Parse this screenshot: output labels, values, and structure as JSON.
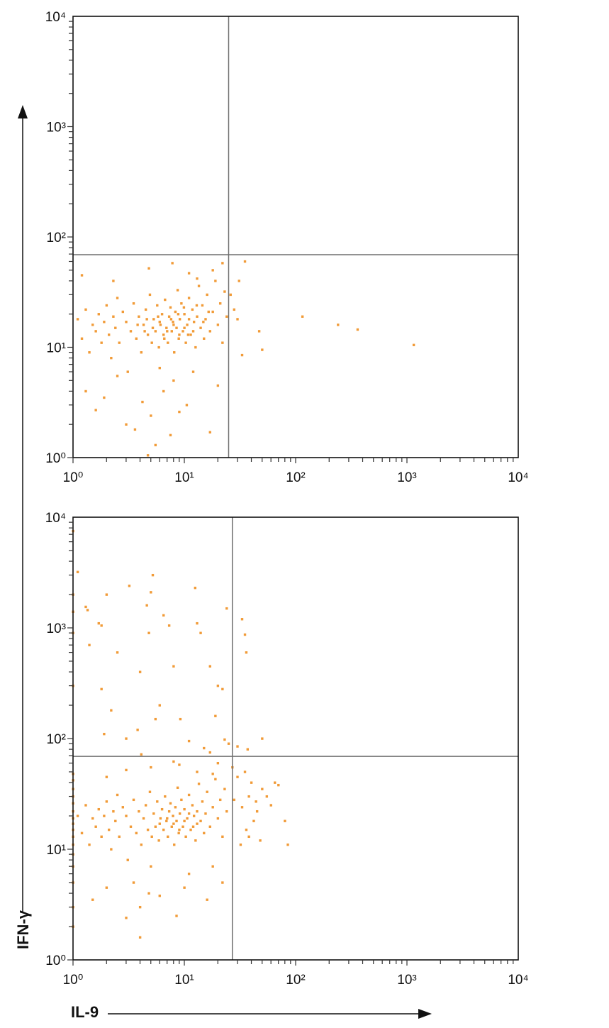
{
  "chart_data": [
    {
      "type": "scatter",
      "title": "",
      "xlabel": "IL-9",
      "ylabel": "IFN-γ",
      "xscale": "log",
      "yscale": "log",
      "xlim": [
        1,
        10000
      ],
      "ylim": [
        1,
        10000
      ],
      "tick_labels": [
        "10⁰",
        "10¹",
        "10²",
        "10³",
        "10⁴"
      ],
      "tick_values": [
        1,
        10,
        100,
        1000,
        10000
      ],
      "quadrant_gate": {
        "x": 25,
        "y": 69
      },
      "point_color": "#F19B38",
      "points": [
        [
          1.1,
          18
        ],
        [
          1.2,
          12
        ],
        [
          1.3,
          22
        ],
        [
          1.4,
          9
        ],
        [
          1.5,
          16
        ],
        [
          1.6,
          14
        ],
        [
          1.7,
          20
        ],
        [
          1.8,
          11
        ],
        [
          1.9,
          17
        ],
        [
          2.0,
          24
        ],
        [
          2.1,
          13
        ],
        [
          2.2,
          8
        ],
        [
          2.3,
          19
        ],
        [
          2.4,
          15
        ],
        [
          2.5,
          28
        ],
        [
          2.6,
          11
        ],
        [
          2.8,
          21
        ],
        [
          3.0,
          17
        ],
        [
          3.1,
          6
        ],
        [
          3.3,
          14
        ],
        [
          3.5,
          25
        ],
        [
          3.7,
          12
        ],
        [
          3.9,
          19
        ],
        [
          4.1,
          9
        ],
        [
          4.3,
          16
        ],
        [
          4.5,
          22
        ],
        [
          4.7,
          13
        ],
        [
          4.9,
          30
        ],
        [
          5.1,
          11
        ],
        [
          5.3,
          18
        ],
        [
          5.5,
          14
        ],
        [
          5.7,
          24
        ],
        [
          5.9,
          10
        ],
        [
          6.1,
          16
        ],
        [
          6.3,
          20
        ],
        [
          6.5,
          13
        ],
        [
          6.7,
          27
        ],
        [
          6.9,
          15
        ],
        [
          7.1,
          11
        ],
        [
          7.3,
          19
        ],
        [
          7.5,
          23
        ],
        [
          7.7,
          14
        ],
        [
          7.9,
          17
        ],
        [
          8.1,
          9
        ],
        [
          8.3,
          21
        ],
        [
          8.5,
          15
        ],
        [
          8.7,
          33
        ],
        [
          8.9,
          12
        ],
        [
          9.1,
          18
        ],
        [
          9.4,
          25
        ],
        [
          9.7,
          14
        ],
        [
          10,
          20
        ],
        [
          10.3,
          11
        ],
        [
          10.6,
          16
        ],
        [
          11,
          28
        ],
        [
          11.4,
          13
        ],
        [
          11.8,
          22
        ],
        [
          12.2,
          17
        ],
        [
          12.6,
          10
        ],
        [
          13,
          19
        ],
        [
          13.5,
          36
        ],
        [
          14,
          15
        ],
        [
          14.5,
          24
        ],
        [
          15,
          12
        ],
        [
          15.5,
          18
        ],
        [
          16,
          30
        ],
        [
          17,
          14
        ],
        [
          18,
          21
        ],
        [
          19,
          40
        ],
        [
          20,
          16
        ],
        [
          21,
          25
        ],
        [
          22,
          11
        ],
        [
          23,
          32
        ],
        [
          24,
          19
        ],
        [
          5.2,
          15
        ],
        [
          6,
          17
        ],
        [
          7,
          14
        ],
        [
          8,
          16
        ],
        [
          9,
          13
        ],
        [
          10,
          15
        ],
        [
          11,
          18
        ],
        [
          12,
          14
        ],
        [
          6.6,
          12
        ],
        [
          7.6,
          18
        ],
        [
          8.8,
          20
        ],
        [
          10.8,
          13
        ],
        [
          5.8,
          19
        ],
        [
          4.4,
          14
        ],
        [
          9.9,
          23
        ],
        [
          12.9,
          24
        ],
        [
          14.8,
          17
        ],
        [
          16.5,
          21
        ],
        [
          3.8,
          16
        ],
        [
          4.6,
          18
        ],
        [
          1.3,
          4
        ],
        [
          1.6,
          2.7
        ],
        [
          1.9,
          3.5
        ],
        [
          2.5,
          5.5
        ],
        [
          3,
          2
        ],
        [
          3.6,
          1.8
        ],
        [
          4.2,
          3.2
        ],
        [
          5,
          2.4
        ],
        [
          5.5,
          1.3
        ],
        [
          6.5,
          4
        ],
        [
          7.5,
          1.6
        ],
        [
          9,
          2.6
        ],
        [
          10.5,
          3
        ],
        [
          12,
          6
        ],
        [
          17,
          1.7
        ],
        [
          20,
          4.5
        ],
        [
          8,
          5
        ],
        [
          6,
          6.5
        ],
        [
          4.7,
          1.05
        ],
        [
          1.2,
          45
        ],
        [
          2.3,
          40
        ],
        [
          4.8,
          52
        ],
        [
          7.8,
          58
        ],
        [
          11,
          47
        ],
        [
          13,
          42
        ],
        [
          18,
          50
        ],
        [
          22,
          58
        ],
        [
          26,
          30
        ],
        [
          28,
          22
        ],
        [
          30,
          18
        ],
        [
          31,
          40
        ],
        [
          35,
          60
        ],
        [
          33,
          8.5
        ],
        [
          47,
          14
        ],
        [
          50,
          9.5
        ],
        [
          115,
          19
        ],
        [
          240,
          16
        ],
        [
          360,
          14.5
        ],
        [
          1150,
          10.5
        ]
      ]
    },
    {
      "type": "scatter",
      "title": "",
      "xlabel": "IL-9",
      "ylabel": "IFN-γ",
      "xscale": "log",
      "yscale": "log",
      "xlim": [
        1,
        10000
      ],
      "ylim": [
        1,
        10000
      ],
      "tick_labels": [
        "10⁰",
        "10¹",
        "10²",
        "10³",
        "10⁴"
      ],
      "tick_values": [
        1,
        10,
        100,
        1000,
        10000
      ],
      "quadrant_gate": {
        "x": 27,
        "y": 69
      },
      "point_color": "#F19B38",
      "points": [
        [
          1,
          7
        ],
        [
          1,
          9
        ],
        [
          1,
          11
        ],
        [
          1,
          13
        ],
        [
          1,
          15
        ],
        [
          1,
          17
        ],
        [
          1,
          19
        ],
        [
          1,
          22
        ],
        [
          1,
          26
        ],
        [
          1,
          30
        ],
        [
          1,
          35
        ],
        [
          1,
          42
        ],
        [
          1,
          48
        ],
        [
          1,
          300
        ],
        [
          1,
          900
        ],
        [
          1,
          1400
        ],
        [
          1,
          2000
        ],
        [
          1,
          7500
        ],
        [
          1,
          5
        ],
        [
          1,
          3
        ],
        [
          1,
          2
        ],
        [
          1.1,
          3200
        ],
        [
          1.3,
          1550
        ],
        [
          1.35,
          1450
        ],
        [
          1.7,
          1100
        ],
        [
          1.8,
          1050
        ],
        [
          1.4,
          700
        ],
        [
          2.0,
          2000
        ],
        [
          1.8,
          280
        ],
        [
          2.5,
          600
        ],
        [
          3.2,
          2400
        ],
        [
          4.0,
          400
        ],
        [
          3.8,
          120
        ],
        [
          5.0,
          2100
        ],
        [
          4.6,
          1600
        ],
        [
          5.2,
          3000
        ],
        [
          4.8,
          900
        ],
        [
          6.5,
          1300
        ],
        [
          7.3,
          1050
        ],
        [
          8,
          450
        ],
        [
          9.2,
          150
        ],
        [
          12.5,
          2300
        ],
        [
          13,
          1100
        ],
        [
          14,
          900
        ],
        [
          17,
          450
        ],
        [
          20,
          300
        ],
        [
          22,
          280
        ],
        [
          24,
          1500
        ],
        [
          33,
          1200
        ],
        [
          35,
          870
        ],
        [
          36,
          600
        ],
        [
          19,
          160
        ],
        [
          23,
          98
        ],
        [
          25,
          90
        ],
        [
          5.5,
          150
        ],
        [
          6,
          200
        ],
        [
          2.2,
          180
        ],
        [
          1.9,
          110
        ],
        [
          3,
          100
        ],
        [
          4.1,
          72
        ],
        [
          11,
          95
        ],
        [
          17,
          75
        ],
        [
          15,
          82
        ],
        [
          50,
          100
        ],
        [
          37,
          80
        ],
        [
          30,
          85
        ],
        [
          1.1,
          20
        ],
        [
          1.2,
          14
        ],
        [
          1.3,
          25
        ],
        [
          1.4,
          11
        ],
        [
          1.5,
          19
        ],
        [
          1.6,
          16
        ],
        [
          1.7,
          23
        ],
        [
          1.8,
          13
        ],
        [
          1.9,
          20
        ],
        [
          2.0,
          27
        ],
        [
          2.1,
          15
        ],
        [
          2.2,
          10
        ],
        [
          2.3,
          22
        ],
        [
          2.4,
          18
        ],
        [
          2.5,
          31
        ],
        [
          2.6,
          13
        ],
        [
          2.8,
          24
        ],
        [
          3.0,
          20
        ],
        [
          3.1,
          8
        ],
        [
          3.3,
          16
        ],
        [
          3.5,
          28
        ],
        [
          3.7,
          14
        ],
        [
          3.9,
          22
        ],
        [
          4.1,
          11
        ],
        [
          4.3,
          19
        ],
        [
          4.5,
          25
        ],
        [
          4.7,
          15
        ],
        [
          4.9,
          33
        ],
        [
          5.1,
          13
        ],
        [
          5.3,
          21
        ],
        [
          5.5,
          16
        ],
        [
          5.7,
          27
        ],
        [
          5.9,
          12
        ],
        [
          6.1,
          19
        ],
        [
          6.3,
          23
        ],
        [
          6.5,
          15
        ],
        [
          6.7,
          30
        ],
        [
          6.9,
          18
        ],
        [
          7.1,
          13
        ],
        [
          7.3,
          22
        ],
        [
          7.5,
          26
        ],
        [
          7.7,
          16
        ],
        [
          7.9,
          20
        ],
        [
          8.1,
          11
        ],
        [
          8.3,
          24
        ],
        [
          8.5,
          18
        ],
        [
          8.7,
          36
        ],
        [
          8.9,
          14
        ],
        [
          9.1,
          21
        ],
        [
          9.4,
          28
        ],
        [
          9.7,
          16
        ],
        [
          10,
          23
        ],
        [
          10.3,
          13
        ],
        [
          10.6,
          19
        ],
        [
          11,
          31
        ],
        [
          11.4,
          15
        ],
        [
          11.8,
          25
        ],
        [
          12.2,
          20
        ],
        [
          12.6,
          12
        ],
        [
          13,
          22
        ],
        [
          13.5,
          39
        ],
        [
          14,
          18
        ],
        [
          14.5,
          27
        ],
        [
          15,
          14
        ],
        [
          15.5,
          21
        ],
        [
          16,
          33
        ],
        [
          17,
          16
        ],
        [
          18,
          24
        ],
        [
          19,
          43
        ],
        [
          20,
          19
        ],
        [
          21,
          28
        ],
        [
          22,
          13
        ],
        [
          23,
          35
        ],
        [
          24,
          22
        ],
        [
          8,
          17
        ],
        [
          9,
          15
        ],
        [
          10,
          18
        ],
        [
          12,
          16
        ],
        [
          7,
          19
        ],
        [
          6,
          17
        ],
        [
          11,
          21
        ],
        [
          13,
          17
        ],
        [
          40,
          40
        ],
        [
          50,
          35
        ],
        [
          55,
          30
        ],
        [
          60,
          25
        ],
        [
          65,
          40
        ],
        [
          45,
          22
        ],
        [
          42,
          18
        ],
        [
          38,
          13
        ],
        [
          32,
          11
        ],
        [
          70,
          38
        ],
        [
          80,
          18
        ],
        [
          85,
          11
        ],
        [
          48,
          12
        ],
        [
          36,
          15
        ],
        [
          28,
          28
        ],
        [
          30,
          45
        ],
        [
          35,
          50
        ],
        [
          27,
          55
        ],
        [
          33,
          24
        ],
        [
          38,
          30
        ],
        [
          44,
          27
        ],
        [
          1.5,
          3.5
        ],
        [
          2,
          4.5
        ],
        [
          3,
          2.4
        ],
        [
          3.5,
          5
        ],
        [
          4,
          3
        ],
        [
          4,
          1.6
        ],
        [
          4.8,
          4
        ],
        [
          5,
          7
        ],
        [
          6,
          3.8
        ],
        [
          8.5,
          2.5
        ],
        [
          10,
          4.5
        ],
        [
          11,
          6
        ],
        [
          16,
          3.5
        ],
        [
          22,
          5
        ],
        [
          18,
          7
        ],
        [
          2,
          45
        ],
        [
          3,
          52
        ],
        [
          5,
          55
        ],
        [
          8,
          62
        ],
        [
          9,
          58
        ],
        [
          13,
          50
        ],
        [
          18,
          48
        ],
        [
          20,
          60
        ]
      ]
    }
  ]
}
